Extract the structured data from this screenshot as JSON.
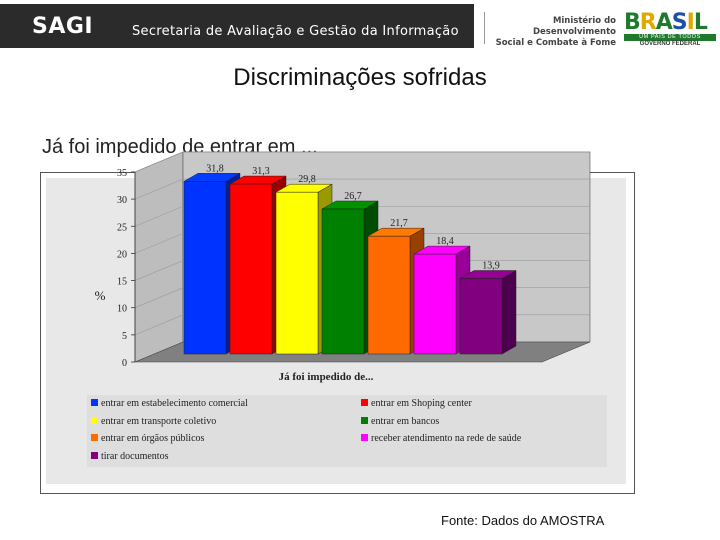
{
  "header": {
    "logo": "SAGI",
    "subtitle": "Secretaria de Avaliação e Gestão da Informação",
    "ministry_line1": "Ministério do Desenvolvimento",
    "ministry_line2": "Social e Combate à Fome",
    "brasil_word": "BRASIL",
    "brasil_tag": "UM PAÍS DE TODOS",
    "brasil_gov": "GOVERNO FEDERAL"
  },
  "title": "Discriminações sofridas",
  "subtitle": "Já foi impedido de entrar em ...",
  "source": "Fonte: Dados do AMOSTRA",
  "colors": {
    "series": [
      "#0033ff",
      "#ff0000",
      "#ffff00",
      "#008000",
      "#ff6a00",
      "#ff00ff",
      "#800080"
    ],
    "plot_wall": "#c8c8c8",
    "floor": "#808080"
  },
  "chart_data": {
    "type": "bar",
    "title": "",
    "xlabel": "Já foi impedido de...",
    "ylabel": "%",
    "ylim": [
      0,
      35
    ],
    "yticks": [
      0,
      5,
      10,
      15,
      20,
      25,
      30,
      35
    ],
    "grid": true,
    "legend_position": "bottom",
    "categories": [
      "entrar em estabelecimento comercial",
      "entrar em Shoping center",
      "entrar em transporte coletivo",
      "entrar em bancos",
      "entrar em órgãos públicos",
      "receber atendimento na rede de saúde",
      "tirar documentos"
    ],
    "values": [
      31.8,
      31.3,
      29.8,
      26.7,
      21.7,
      18.4,
      13.9
    ],
    "value_labels": [
      "31,8",
      "31,3",
      "29,8",
      "26,7",
      "21,7",
      "18,4",
      "13,9"
    ],
    "ytick_labels": [
      "0",
      "5",
      "10",
      "15",
      "20",
      "25",
      "30",
      "35"
    ]
  }
}
